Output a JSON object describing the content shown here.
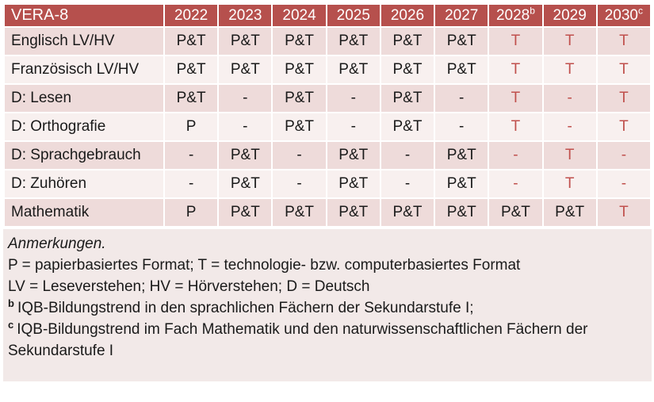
{
  "table": {
    "header": {
      "title": "VERA-8",
      "years": [
        {
          "label": "2022",
          "sup": ""
        },
        {
          "label": "2023",
          "sup": ""
        },
        {
          "label": "2024",
          "sup": ""
        },
        {
          "label": "2025",
          "sup": ""
        },
        {
          "label": "2026",
          "sup": ""
        },
        {
          "label": "2027",
          "sup": ""
        },
        {
          "label": "2028",
          "sup": "b"
        },
        {
          "label": "2029",
          "sup": ""
        },
        {
          "label": "2030",
          "sup": "c"
        }
      ]
    },
    "rows": [
      {
        "label": "Englisch LV/HV",
        "cells": [
          {
            "t": "P&T",
            "hl": false
          },
          {
            "t": "P&T",
            "hl": false
          },
          {
            "t": "P&T",
            "hl": false
          },
          {
            "t": "P&T",
            "hl": false
          },
          {
            "t": "P&T",
            "hl": false
          },
          {
            "t": "P&T",
            "hl": false
          },
          {
            "t": "T",
            "hl": true
          },
          {
            "t": "T",
            "hl": true
          },
          {
            "t": "T",
            "hl": true
          }
        ]
      },
      {
        "label": "Französisch LV/HV",
        "cells": [
          {
            "t": "P&T",
            "hl": false
          },
          {
            "t": "P&T",
            "hl": false
          },
          {
            "t": "P&T",
            "hl": false
          },
          {
            "t": "P&T",
            "hl": false
          },
          {
            "t": "P&T",
            "hl": false
          },
          {
            "t": "P&T",
            "hl": false
          },
          {
            "t": "T",
            "hl": true
          },
          {
            "t": "T",
            "hl": true
          },
          {
            "t": "T",
            "hl": true
          }
        ]
      },
      {
        "label": "D: Lesen",
        "cells": [
          {
            "t": "P&T",
            "hl": false
          },
          {
            "t": "-",
            "hl": false
          },
          {
            "t": "P&T",
            "hl": false
          },
          {
            "t": "-",
            "hl": false
          },
          {
            "t": "P&T",
            "hl": false
          },
          {
            "t": "-",
            "hl": false
          },
          {
            "t": "T",
            "hl": true
          },
          {
            "t": "-",
            "hl": true
          },
          {
            "t": "T",
            "hl": true
          }
        ]
      },
      {
        "label": "D: Orthografie",
        "cells": [
          {
            "t": "P",
            "hl": false
          },
          {
            "t": "-",
            "hl": false
          },
          {
            "t": "P&T",
            "hl": false
          },
          {
            "t": "-",
            "hl": false
          },
          {
            "t": "P&T",
            "hl": false
          },
          {
            "t": "-",
            "hl": false
          },
          {
            "t": "T",
            "hl": true
          },
          {
            "t": "-",
            "hl": true
          },
          {
            "t": "T",
            "hl": true
          }
        ]
      },
      {
        "label": "D: Sprachgebrauch",
        "cells": [
          {
            "t": "-",
            "hl": false
          },
          {
            "t": "P&T",
            "hl": false
          },
          {
            "t": "-",
            "hl": false
          },
          {
            "t": "P&T",
            "hl": false
          },
          {
            "t": "-",
            "hl": false
          },
          {
            "t": "P&T",
            "hl": false
          },
          {
            "t": "-",
            "hl": true
          },
          {
            "t": "T",
            "hl": true
          },
          {
            "t": "-",
            "hl": true
          }
        ]
      },
      {
        "label": "D: Zuhören",
        "cells": [
          {
            "t": "-",
            "hl": false
          },
          {
            "t": "P&T",
            "hl": false
          },
          {
            "t": "-",
            "hl": false
          },
          {
            "t": "P&T",
            "hl": false
          },
          {
            "t": "-",
            "hl": false
          },
          {
            "t": "P&T",
            "hl": false
          },
          {
            "t": "-",
            "hl": true
          },
          {
            "t": "T",
            "hl": true
          },
          {
            "t": "-",
            "hl": true
          }
        ]
      },
      {
        "label": "Mathematik",
        "cells": [
          {
            "t": "P",
            "hl": false
          },
          {
            "t": "P&T",
            "hl": false
          },
          {
            "t": "P&T",
            "hl": false
          },
          {
            "t": "P&T",
            "hl": false
          },
          {
            "t": "P&T",
            "hl": false
          },
          {
            "t": "P&T",
            "hl": false
          },
          {
            "t": "P&T",
            "hl": false
          },
          {
            "t": "P&T",
            "hl": false
          },
          {
            "t": "T",
            "hl": true
          }
        ]
      }
    ]
  },
  "notes": {
    "heading": "Anmerkungen.",
    "legend_formats": "P = papierbasiertes Format; T = technologie- bzw. computerbasiertes Format",
    "legend_abbrev": "LV = Leseverstehen; HV = Hörverstehen; D = Deutsch",
    "footnote_b": {
      "sup": "b",
      "text": "IQB-Bildungstrend in den sprachlichen Fächern der Sekundarstufe I;"
    },
    "footnote_c": {
      "sup": "c",
      "text": "IQB-Bildungstrend im Fach Mathematik und den naturwissenschaftlichen Fächern der Sekundarstufe I"
    }
  },
  "colors": {
    "header_bg": "#b6504d",
    "header_text": "#ffffff",
    "row_band_dark": "#eedbda",
    "row_band_light": "#f8f0ef",
    "notes_bg": "#f2e9e8",
    "highlight_text": "#c0504d",
    "body_text": "#1a1a1a"
  }
}
